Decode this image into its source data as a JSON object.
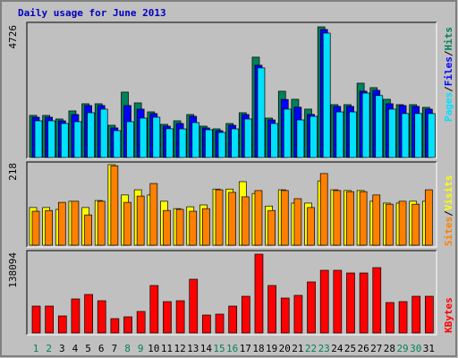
{
  "chart_data": [
    {
      "type": "bar",
      "title": "Daily usage for June 2013",
      "legend_separator": "/",
      "ylim": [
        0,
        4726
      ],
      "yticks": [
        4726
      ],
      "series": [
        {
          "name": "Hits",
          "color": "#00805c",
          "values": [
            1523,
            1523,
            1393,
            1685,
            1944,
            1944,
            1166,
            2365,
            1976,
            1652,
            1199,
            1328,
            1555,
            1134,
            1037,
            1231,
            1620,
            3629,
            1426,
            2398,
            2106,
            1750,
            4726,
            1912,
            1912,
            2689,
            2527,
            2106,
            1912,
            1912,
            1814
          ]
        },
        {
          "name": "Files",
          "color": "#0000ff",
          "values": [
            1458,
            1458,
            1328,
            1555,
            1880,
            1880,
            1070,
            1880,
            1750,
            1590,
            1134,
            1231,
            1490,
            1070,
            972,
            1166,
            1555,
            3337,
            1360,
            2100,
            1820,
            1560,
            4630,
            1850,
            1850,
            2400,
            2430,
            1944,
            1880,
            1850,
            1750
          ]
        },
        {
          "name": "Pages",
          "color": "#00e0ff",
          "values": [
            1328,
            1328,
            1231,
            1296,
            1620,
            1750,
            972,
            1296,
            1425,
            1458,
            1040,
            1036,
            1263,
            1004,
            907,
            1036,
            1393,
            3240,
            1230,
            1750,
            1360,
            1490,
            4500,
            1650,
            1650,
            2330,
            2240,
            1750,
            1590,
            1590,
            1590
          ]
        }
      ]
    },
    {
      "type": "bar",
      "ylim": [
        0,
        218
      ],
      "yticks": [
        218
      ],
      "series": [
        {
          "name": "Visits",
          "color": "#ffff00",
          "values": [
            102,
            102,
            97,
            119,
            102,
            121,
            218,
            136,
            150,
            136,
            119,
            99,
            104,
            109,
            152,
            152,
            172,
            140,
            106,
            150,
            114,
            114,
            174,
            150,
            148,
            148,
            119,
            114,
            114,
            119,
            119
          ]
        },
        {
          "name": "Sites",
          "color": "#ff8000",
          "values": [
            92,
            94,
            116,
            119,
            82,
            119,
            215,
            116,
            133,
            167,
            94,
            97,
            92,
            99,
            150,
            143,
            131,
            148,
            94,
            148,
            126,
            102,
            194,
            148,
            145,
            145,
            136,
            111,
            119,
            111,
            150
          ]
        }
      ]
    },
    {
      "type": "bar",
      "ylim": [
        0,
        138094
      ],
      "yticks": [
        138094
      ],
      "categories": [
        "1",
        "2",
        "3",
        "4",
        "5",
        "6",
        "7",
        "8",
        "9",
        "10",
        "11",
        "12",
        "13",
        "14",
        "15",
        "16",
        "17",
        "18",
        "19",
        "20",
        "21",
        "22",
        "23",
        "24",
        "25",
        "26",
        "27",
        "28",
        "29",
        "30",
        "31"
      ],
      "category_colors": [
        "#00805c",
        "#00805c",
        "#000000",
        "#000000",
        "#000000",
        "#000000",
        "#000000",
        "#00805c",
        "#00805c",
        "#000000",
        "#000000",
        "#000000",
        "#000000",
        "#000000",
        "#00805c",
        "#00805c",
        "#000000",
        "#000000",
        "#000000",
        "#000000",
        "#000000",
        "#00805c",
        "#00805c",
        "#000000",
        "#000000",
        "#000000",
        "#000000",
        "#000000",
        "#00805c",
        "#00805c",
        "#000000"
      ],
      "series": [
        {
          "name": "KBytes",
          "color": "#ff0000",
          "values": [
            47070,
            47070,
            29811,
            59622,
            67467,
            56484,
            25104,
            28242,
            37656,
            83157,
            54915,
            56484,
            94140,
            31380,
            32949,
            47070,
            64329,
            138094,
            83157,
            61191,
            65898,
            89433,
            109830,
            109830,
            105123,
            105123,
            114537,
            53346,
            54915,
            64329,
            64329
          ]
        }
      ]
    }
  ]
}
